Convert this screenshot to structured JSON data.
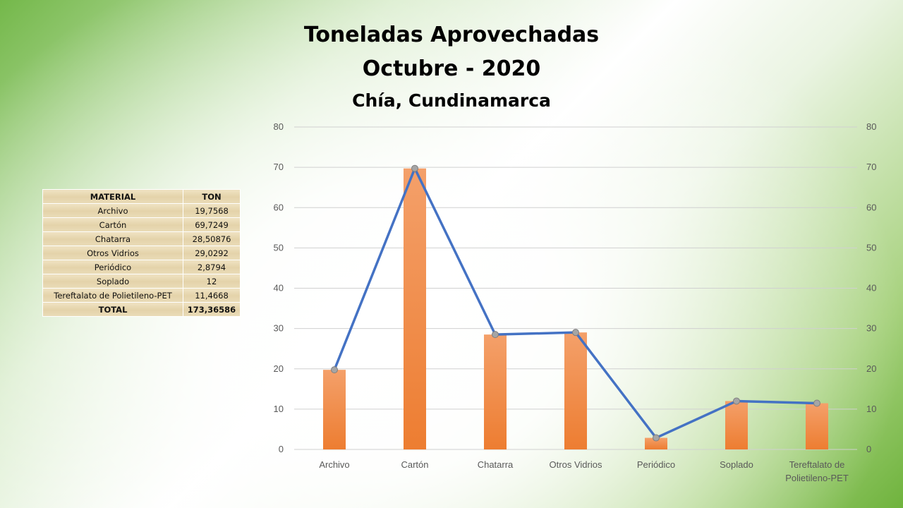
{
  "header": {
    "title_line1": "Toneladas Aprovechadas",
    "title_line2": "Octubre - 2020",
    "subtitle": "Chía, Cundinamarca"
  },
  "table": {
    "headers": [
      "MATERIAL",
      "TON"
    ],
    "rows": [
      {
        "material": "Archivo",
        "ton": "19,7568"
      },
      {
        "material": "Cartón",
        "ton": "69,7249"
      },
      {
        "material": "Chatarra",
        "ton": "28,50876"
      },
      {
        "material": "Otros Vidrios",
        "ton": "29,0292"
      },
      {
        "material": "Periódico",
        "ton": "2,8794"
      },
      {
        "material": "Soplado",
        "ton": "12"
      },
      {
        "material": "Tereftalato de Polietileno-PET",
        "ton": "11,4668"
      }
    ],
    "total": {
      "label": "TOTAL",
      "value": "173,36586"
    }
  },
  "chart_data": {
    "type": "bar",
    "categories": [
      "Archivo",
      "Cartón",
      "Chatarra",
      "Otros Vidrios",
      "Periódico",
      "Soplado",
      "Tereftalato de Polietileno-PET"
    ],
    "category_labels_wrapped": [
      [
        "Archivo"
      ],
      [
        "Cartón"
      ],
      [
        "Chatarra"
      ],
      [
        "Otros Vidrios"
      ],
      [
        "Periódico"
      ],
      [
        "Soplado"
      ],
      [
        "Tereftalato de",
        "Polietileno-PET"
      ]
    ],
    "series": [
      {
        "values": [
          19.7568,
          69.7249,
          28.50876,
          29.0292,
          2.8794,
          12,
          11.4668
        ],
        "render": "bar",
        "color": "#ed7d31",
        "axis": "left"
      },
      {
        "values": [
          19.7568,
          69.7249,
          28.50876,
          29.0292,
          2.8794,
          12,
          11.4668
        ],
        "render": "line",
        "color": "#4472c4",
        "marker_color": "#a5a5a5",
        "axis": "right"
      }
    ],
    "ylim": [
      0,
      80
    ],
    "y_ticks": [
      0,
      10,
      20,
      30,
      40,
      50,
      60,
      70,
      80
    ],
    "y2lim": [
      0,
      80
    ],
    "y2_ticks": [
      0,
      10,
      20,
      30,
      40,
      50,
      60,
      70,
      80
    ],
    "grid": true,
    "title": "Toneladas Aprovechadas Octubre - 2020",
    "subtitle": "Chía, Cundinamarca",
    "xlabel": "",
    "ylabel": ""
  }
}
